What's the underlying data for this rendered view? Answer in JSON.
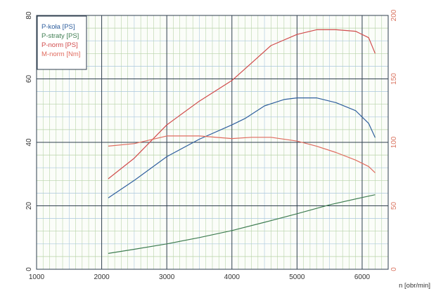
{
  "chart_data": {
    "type": "line",
    "xlabel": "n [obr/min]",
    "xlim": [
      1000,
      6400
    ],
    "xticks": [
      1000,
      2000,
      3000,
      4000,
      5000,
      6000
    ],
    "ylim_left": [
      0,
      80
    ],
    "yticks_left": [
      0,
      20,
      40,
      60,
      80
    ],
    "ylim_right": [
      0,
      200
    ],
    "yticks_right": [
      0,
      50,
      100,
      150,
      200
    ],
    "grid": true,
    "legend_position": "top-left",
    "colors": {
      "grid_major": "#2f3f4f",
      "grid_minor_green": "#b7d3a8",
      "grid_minor_blue": "#a9c7de",
      "right_axis": "#d9735f"
    },
    "series": [
      {
        "name": "P-koła [PS]",
        "axis": "left",
        "color": "#2f5f9e",
        "x": [
          2100,
          2500,
          3000,
          3500,
          4000,
          4200,
          4500,
          4800,
          5000,
          5300,
          5600,
          5900,
          6100,
          6200
        ],
        "y": [
          22.5,
          28,
          35.5,
          41,
          45.5,
          47.5,
          51.5,
          53.5,
          54,
          54,
          52.5,
          50,
          46,
          41.5
        ]
      },
      {
        "name": "P-straty [PS]",
        "axis": "left",
        "color": "#3f7d52",
        "x": [
          2100,
          2500,
          3000,
          3500,
          4000,
          4500,
          5000,
          5500,
          6000,
          6200
        ],
        "y": [
          5,
          6.3,
          8,
          10,
          12.2,
          14.8,
          17.5,
          20.3,
          22.6,
          23.5
        ]
      },
      {
        "name": "P-norm [PS]",
        "axis": "left",
        "color": "#d14b4b",
        "x": [
          2100,
          2500,
          3000,
          3500,
          4000,
          4300,
          4600,
          5000,
          5300,
          5600,
          5900,
          6100,
          6200
        ],
        "y": [
          28.5,
          35,
          45.5,
          53,
          59.5,
          65,
          70.5,
          74,
          75.5,
          75.5,
          75,
          73,
          68
        ]
      },
      {
        "name": "M-norm [Nm]",
        "axis": "right",
        "color": "#e06b5e",
        "x": [
          2100,
          2500,
          3000,
          3500,
          4000,
          4300,
          4600,
          5000,
          5300,
          5600,
          5900,
          6100,
          6200
        ],
        "y": [
          97,
          99,
          105,
          105,
          103,
          104,
          104,
          101,
          97,
          92,
          86,
          81,
          76
        ]
      }
    ]
  }
}
